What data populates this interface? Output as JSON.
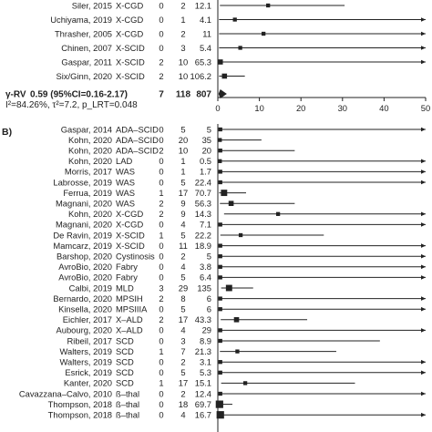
{
  "colors": {
    "line": "#222222",
    "text": "#222222",
    "background": "#ffffff"
  },
  "chart_data": [
    {
      "type": "forest",
      "panel": "",
      "xlim": [
        0,
        50
      ],
      "xticks": [
        "0",
        "10",
        "20",
        "30",
        "40",
        "50"
      ],
      "rows": [
        {
          "study": "Siler, 2015",
          "disease": "X-CGD",
          "events": "0",
          "n": "2",
          "estimate": "12.1",
          "value": 12.1,
          "lo": 0.5,
          "hi": 30.5,
          "weight": 1
        },
        {
          "study": "Uchiyama, 2019",
          "disease": "X-CGD",
          "events": "0",
          "n": "1",
          "estimate": "4.1",
          "value": 4.1,
          "lo": 0.3,
          "hi": 50,
          "weight": 1,
          "arrow": true
        },
        {
          "study": "Thrasher, 2005",
          "disease": "X-CGD",
          "events": "0",
          "n": "2",
          "estimate": "11",
          "value": 11,
          "lo": 0.3,
          "hi": 50,
          "weight": 1,
          "arrow": true
        },
        {
          "study": "Chinen, 2007",
          "disease": "X-SCID",
          "events": "0",
          "n": "3",
          "estimate": "5.4",
          "value": 5.4,
          "lo": 0.3,
          "hi": 50,
          "weight": 1,
          "arrow": true
        },
        {
          "study": "Gaspar, 2011",
          "disease": "X-SCID",
          "events": "2",
          "n": "10",
          "estimate": "65.3",
          "value": 0.6,
          "lo": 0.2,
          "hi": 50,
          "weight": 2,
          "arrow": true
        },
        {
          "study": "Six/Ginn, 2020",
          "disease": "X-SCID",
          "events": "2",
          "n": "10",
          "estimate": "106.2",
          "value": 1.6,
          "lo": 0.3,
          "hi": 6.5,
          "weight": 2
        }
      ],
      "pooled": {
        "label_prefix": "γ-RV",
        "label": "0.59 (95%CI=0.16-2.17)",
        "events": "7",
        "n": "118",
        "total": "807",
        "value": 0.59,
        "lo": 0.16,
        "hi": 2.17
      },
      "heterogeneity": "I²=84.26%, τ²=7.2, p_LRT=0.048"
    },
    {
      "type": "forest",
      "panel": "B)",
      "xlim": [
        0,
        50
      ],
      "rows": [
        {
          "study": "Gaspar, 2014",
          "disease": "ADA–SCID",
          "events": "0",
          "n": "5",
          "estimate": "5",
          "value": 0.6,
          "lo": 0.2,
          "hi": 50,
          "weight": 1,
          "arrow": true
        },
        {
          "study": "Kohn, 2020",
          "disease": "ADA–SCID",
          "events": "0",
          "n": "20",
          "estimate": "35",
          "value": 0.5,
          "lo": 0.2,
          "hi": 10.5,
          "weight": 1
        },
        {
          "study": "Kohn, 2020",
          "disease": "ADA–SCID",
          "events": "2",
          "n": "10",
          "estimate": "20",
          "value": 0.6,
          "lo": 0.2,
          "hi": 18.5,
          "weight": 1
        },
        {
          "study": "Kohn, 2020",
          "disease": "LAD",
          "events": "0",
          "n": "1",
          "estimate": "0.5",
          "value": 0.5,
          "lo": 0.2,
          "hi": 50,
          "weight": 1,
          "arrow": true
        },
        {
          "study": "Morris, 2017",
          "disease": "WAS",
          "events": "0",
          "n": "1",
          "estimate": "1.7",
          "value": 0.6,
          "lo": 0.2,
          "hi": 50,
          "weight": 1,
          "arrow": true
        },
        {
          "study": "Labrosse, 2019",
          "disease": "WAS",
          "events": "0",
          "n": "5",
          "estimate": "22.4",
          "value": 0.6,
          "lo": 0.2,
          "hi": 50,
          "weight": 1,
          "arrow": true
        },
        {
          "study": "Ferrua, 2019",
          "disease": "WAS",
          "events": "1",
          "n": "17",
          "estimate": "70.7",
          "value": 1.5,
          "lo": 0.3,
          "hi": 6.8,
          "weight": 3
        },
        {
          "study": "Magnani, 2020",
          "disease": "WAS",
          "events": "2",
          "n": "9",
          "estimate": "56.3",
          "value": 3.2,
          "lo": 0.5,
          "hi": 18.5,
          "weight": 2
        },
        {
          "study": "Kohn, 2020",
          "disease": "X-CGD",
          "events": "2",
          "n": "9",
          "estimate": "14.3",
          "value": 14.5,
          "lo": 1.5,
          "hi": 50,
          "weight": 1,
          "arrow": true
        },
        {
          "study": "Magnani, 2020",
          "disease": "X-CGD",
          "events": "0",
          "n": "4",
          "estimate": "7.1",
          "value": 0.6,
          "lo": 0.2,
          "hi": 50,
          "weight": 1,
          "arrow": true
        },
        {
          "study": "De Ravin, 2019",
          "disease": "X-SCID",
          "events": "1",
          "n": "5",
          "estimate": "22.2",
          "value": 5.5,
          "lo": 0.6,
          "hi": 25.5,
          "weight": 1
        },
        {
          "study": "Mamcarz, 2019",
          "disease": "X-SCID",
          "events": "0",
          "n": "11",
          "estimate": "18.9",
          "value": 0.6,
          "lo": 0.2,
          "hi": 50,
          "weight": 1,
          "arrow": true
        },
        {
          "study": "Barshop, 2020",
          "disease": "Cystinosis",
          "events": "0",
          "n": "2",
          "estimate": "5",
          "value": 0.6,
          "lo": 0.2,
          "hi": 50,
          "weight": 1,
          "arrow": true
        },
        {
          "study": "AvroBio, 2020",
          "disease": "Fabry",
          "events": "0",
          "n": "4",
          "estimate": "3.8",
          "value": 0.6,
          "lo": 0.2,
          "hi": 50,
          "weight": 1,
          "arrow": true
        },
        {
          "study": "AvroBio, 2020",
          "disease": "Fabry",
          "events": "0",
          "n": "5",
          "estimate": "6.4",
          "value": 0.6,
          "lo": 0.2,
          "hi": 50,
          "weight": 1,
          "arrow": true
        },
        {
          "study": "Calbi, 2019",
          "disease": "MLD",
          "events": "3",
          "n": "29",
          "estimate": "135",
          "value": 2.7,
          "lo": 0.8,
          "hi": 8.5,
          "weight": 3
        },
        {
          "study": "Bernardo, 2020",
          "disease": "MPSIH",
          "events": "2",
          "n": "8",
          "estimate": "6",
          "value": 0.6,
          "lo": 0.2,
          "hi": 50,
          "weight": 1,
          "arrow": true
        },
        {
          "study": "Kinsella, 2020",
          "disease": "MPSIIIA",
          "events": "0",
          "n": "5",
          "estimate": "6",
          "value": 0.6,
          "lo": 0.2,
          "hi": 50,
          "weight": 1,
          "arrow": true
        },
        {
          "study": "Eichler, 2017",
          "disease": "X–ALD",
          "events": "2",
          "n": "17",
          "estimate": "43.3",
          "value": 4.5,
          "lo": 0.7,
          "hi": 21.5,
          "weight": 2
        },
        {
          "study": "Aubourg, 2020",
          "disease": "X–ALD",
          "events": "0",
          "n": "4",
          "estimate": "29",
          "value": 0.6,
          "lo": 0.2,
          "hi": 50,
          "weight": 1,
          "arrow": true
        },
        {
          "study": "Ribeil, 2017",
          "disease": "SCD",
          "events": "0",
          "n": "3",
          "estimate": "8.9",
          "value": 0.6,
          "lo": 0.2,
          "hi": 39,
          "weight": 1
        },
        {
          "study": "Walters, 2019",
          "disease": "SCD",
          "events": "1",
          "n": "7",
          "estimate": "21.3",
          "value": 4.7,
          "lo": 0.5,
          "hi": 28.5,
          "weight": 1
        },
        {
          "study": "Walters, 2019",
          "disease": "SCD",
          "events": "0",
          "n": "2",
          "estimate": "3.1",
          "value": 0.6,
          "lo": 0.2,
          "hi": 50,
          "weight": 1,
          "arrow": true
        },
        {
          "study": "Esrick, 2019",
          "disease": "SCD",
          "events": "0",
          "n": "5",
          "estimate": "5.3",
          "value": 0.6,
          "lo": 0.2,
          "hi": 50,
          "weight": 1,
          "arrow": true
        },
        {
          "study": "Kanter, 2020",
          "disease": "SCD",
          "events": "1",
          "n": "17",
          "estimate": "15.1",
          "value": 6.6,
          "lo": 0.8,
          "hi": 33,
          "weight": 1
        },
        {
          "study": "Cavazzana–Calvo, 2010",
          "disease": "ß–thal",
          "events": "0",
          "n": "2",
          "estimate": "12.4",
          "value": 0.6,
          "lo": 0.2,
          "hi": 50,
          "weight": 1,
          "arrow": true
        },
        {
          "study": "Thompson, 2018",
          "disease": "ß–thal",
          "events": "0",
          "n": "18",
          "estimate": "69.7",
          "value": 0.4,
          "lo": 0.2,
          "hi": 3.5,
          "weight": 4
        },
        {
          "study": "Thompson, 2018",
          "disease": "ß–thal",
          "events": "0",
          "n": "4",
          "estimate": "16.7",
          "value": 0.6,
          "lo": 0.2,
          "hi": 50,
          "weight": 4,
          "arrow": true
        }
      ]
    }
  ]
}
